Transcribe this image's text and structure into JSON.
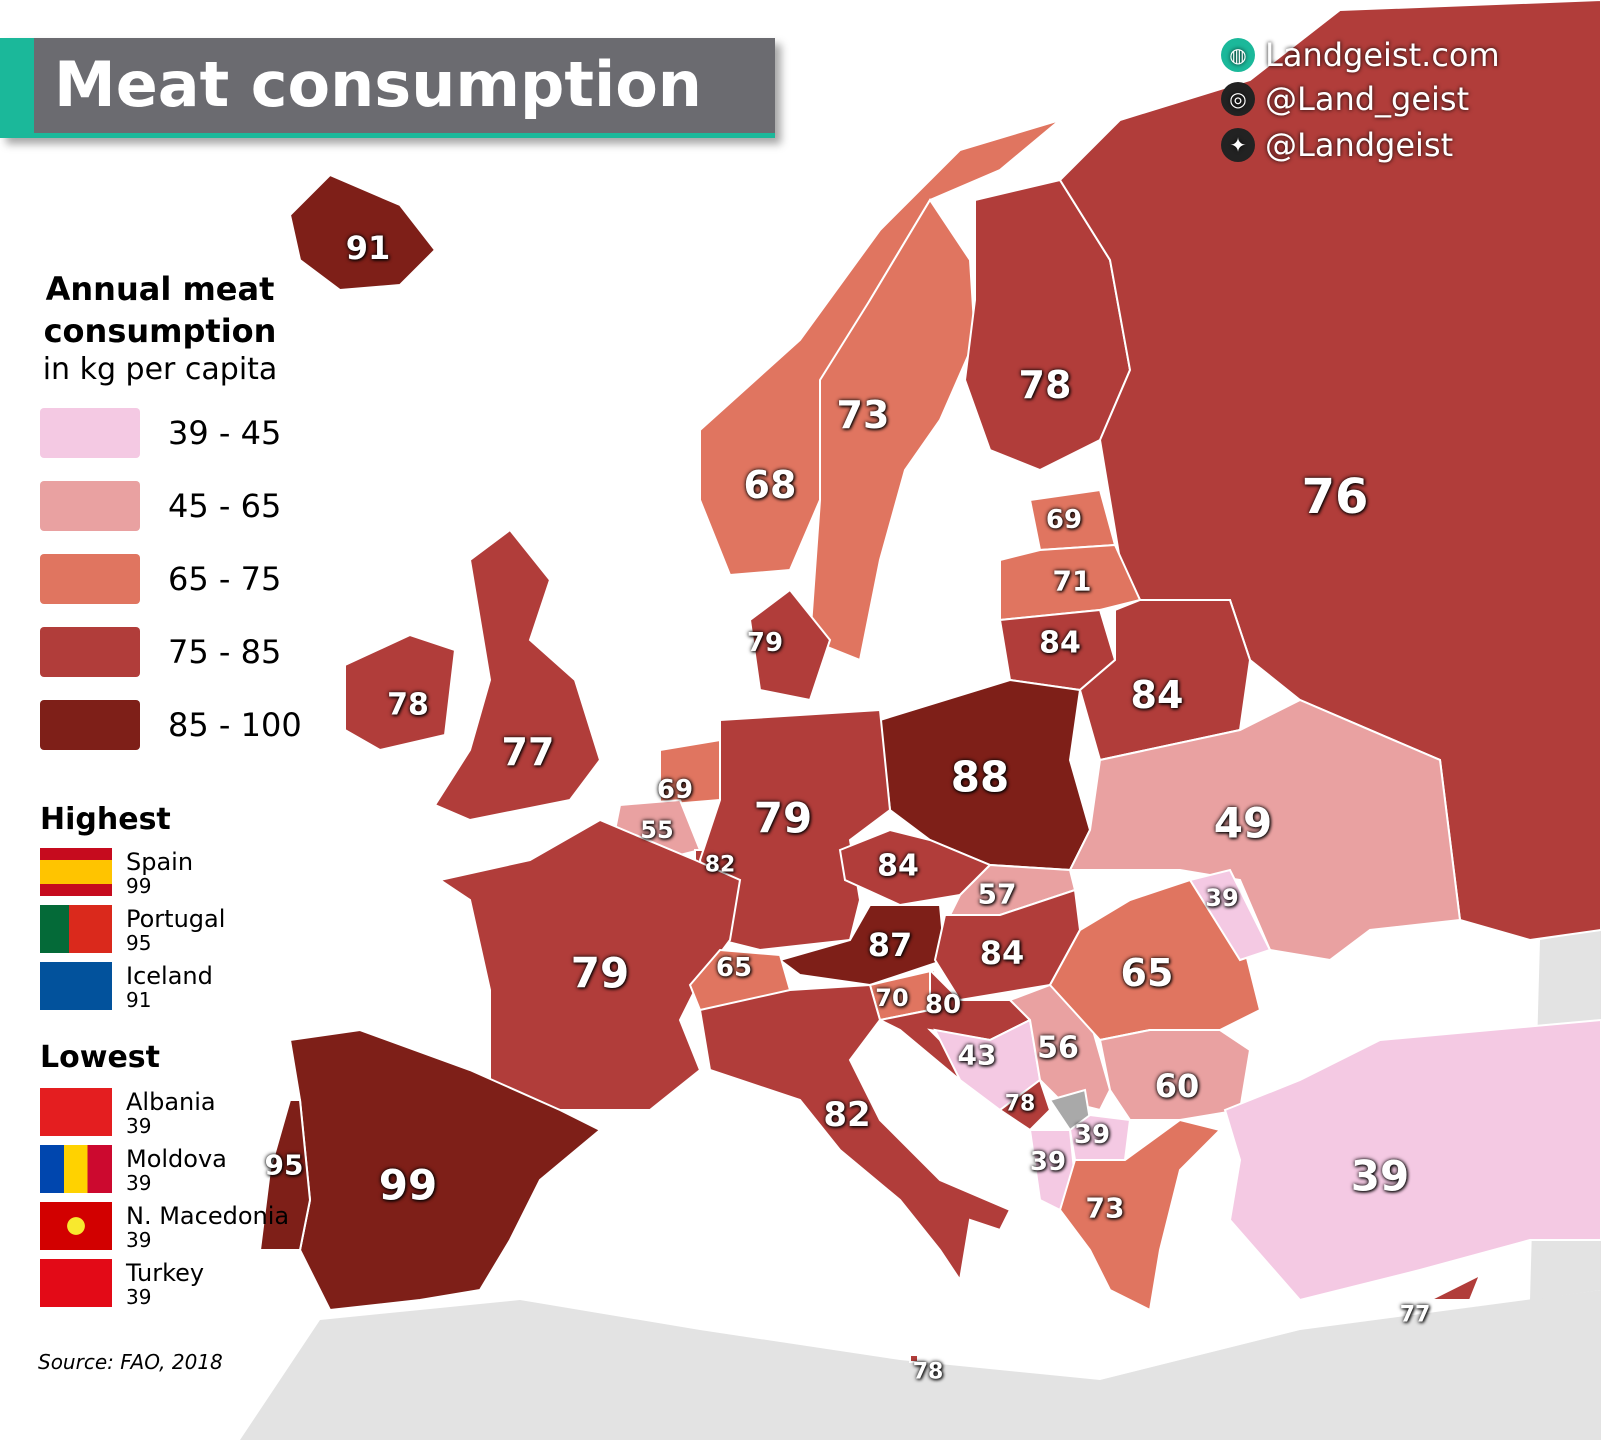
{
  "title": "Meat consumption",
  "social": {
    "website": "Landgeist.com",
    "instagram": "@Land_geist",
    "twitter": "@Landgeist"
  },
  "legend": {
    "title_line1": "Annual meat",
    "title_line2": "consumption",
    "subtitle": "in kg per capita",
    "bins": [
      {
        "label": "39 - 45",
        "color": "#f4c9e3"
      },
      {
        "label": "45 - 65",
        "color": "#e9a1a1"
      },
      {
        "label": "65 - 75",
        "color": "#e07560"
      },
      {
        "label": "75 - 85",
        "color": "#b13d3a"
      },
      {
        "label": "85 - 100",
        "color": "#7e1f18"
      }
    ]
  },
  "highest": {
    "title": "Highest",
    "items": [
      {
        "country": "Spain",
        "value": "99"
      },
      {
        "country": "Portugal",
        "value": "95"
      },
      {
        "country": "Iceland",
        "value": "91"
      }
    ]
  },
  "lowest": {
    "title": "Lowest",
    "items": [
      {
        "country": "Albania",
        "value": "39"
      },
      {
        "country": "Moldova",
        "value": "39"
      },
      {
        "country": "N. Macedonia",
        "value": "39"
      },
      {
        "country": "Turkey",
        "value": "39"
      }
    ]
  },
  "source": "Source: FAO, 2018",
  "map": {
    "no_data_color": "#a9a9a9",
    "regions": [
      {
        "country": "Iceland",
        "value": 91
      },
      {
        "country": "Ireland",
        "value": 78
      },
      {
        "country": "United Kingdom",
        "value": 77
      },
      {
        "country": "Norway",
        "value": 68
      },
      {
        "country": "Sweden",
        "value": 73
      },
      {
        "country": "Finland",
        "value": 78
      },
      {
        "country": "Russia",
        "value": 76
      },
      {
        "country": "Estonia",
        "value": 69
      },
      {
        "country": "Latvia",
        "value": 71
      },
      {
        "country": "Lithuania",
        "value": 84
      },
      {
        "country": "Belarus",
        "value": 84
      },
      {
        "country": "Poland",
        "value": 88
      },
      {
        "country": "Ukraine",
        "value": 49
      },
      {
        "country": "Denmark",
        "value": 79
      },
      {
        "country": "Netherlands",
        "value": 69
      },
      {
        "country": "Belgium",
        "value": 55
      },
      {
        "country": "Luxembourg",
        "value": 82
      },
      {
        "country": "Germany",
        "value": 79
      },
      {
        "country": "France",
        "value": 79
      },
      {
        "country": "Czechia",
        "value": 84
      },
      {
        "country": "Slovakia",
        "value": 57
      },
      {
        "country": "Austria",
        "value": 87
      },
      {
        "country": "Hungary",
        "value": 84
      },
      {
        "country": "Switzerland",
        "value": 65
      },
      {
        "country": "Slovenia",
        "value": 70
      },
      {
        "country": "Croatia",
        "value": 80
      },
      {
        "country": "Bosnia and Herzegovina",
        "value": 43
      },
      {
        "country": "Serbia",
        "value": 56
      },
      {
        "country": "Montenegro",
        "value": 78
      },
      {
        "country": "North Macedonia",
        "value": 39
      },
      {
        "country": "Albania",
        "value": 39
      },
      {
        "country": "Romania",
        "value": 65
      },
      {
        "country": "Moldova",
        "value": 39
      },
      {
        "country": "Bulgaria",
        "value": 60
      },
      {
        "country": "Greece",
        "value": 73
      },
      {
        "country": "Turkey",
        "value": 39
      },
      {
        "country": "Cyprus",
        "value": 77
      },
      {
        "country": "Italy",
        "value": 82
      },
      {
        "country": "Spain",
        "value": 99
      },
      {
        "country": "Portugal",
        "value": 95
      },
      {
        "country": "Malta",
        "value": 78
      }
    ]
  }
}
